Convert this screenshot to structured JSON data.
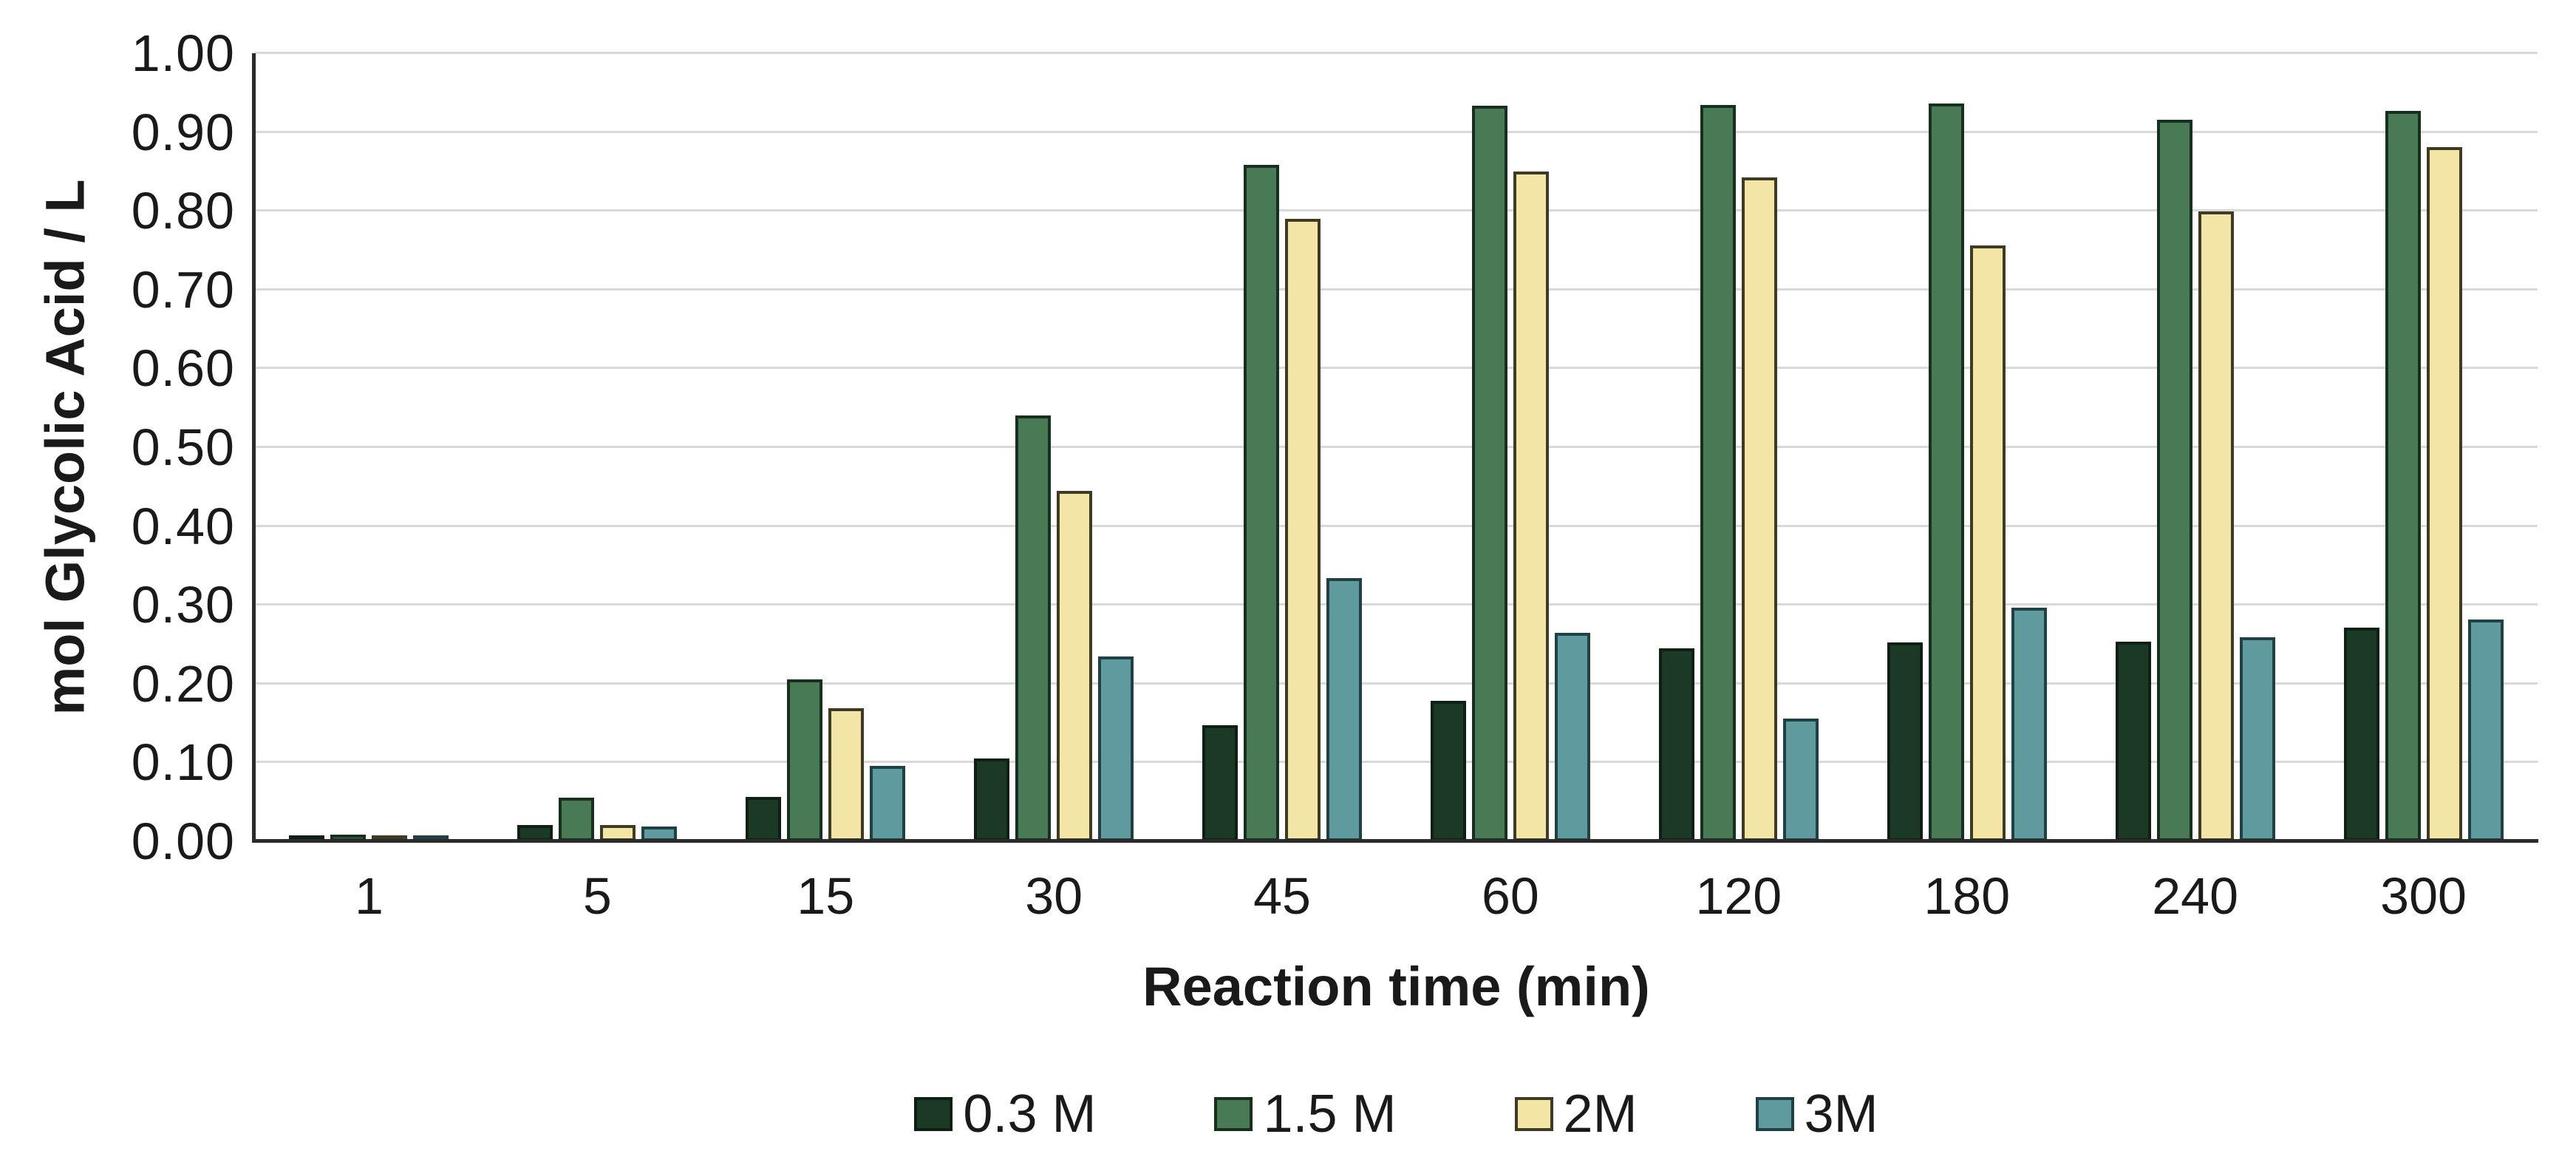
{
  "chart_data": {
    "type": "bar",
    "title": "",
    "xlabel": "Reaction time (min)",
    "ylabel": "mol Glycolic Acid / L",
    "ylim": [
      0,
      1.0
    ],
    "ytick_step": 0.1,
    "ytick_decimals": 2,
    "grid": "horizontal",
    "legend_position": "bottom-center",
    "categories": [
      "1",
      "5",
      "15",
      "30",
      "45",
      "60",
      "120",
      "180",
      "240",
      "300"
    ],
    "series": [
      {
        "name": "0.3 M",
        "color": "#1a3a26",
        "border": "#101f14",
        "values": [
          0.005,
          0.021,
          0.056,
          0.105,
          0.147,
          0.178,
          0.245,
          0.252,
          0.253,
          0.271
        ]
      },
      {
        "name": "1.5 M",
        "color": "#477a55",
        "border": "#16301d",
        "values": [
          0.008,
          0.055,
          0.205,
          0.54,
          0.858,
          0.933,
          0.934,
          0.936,
          0.916,
          0.927
        ]
      },
      {
        "name": "2M",
        "color": "#f2e5a5",
        "border": "#3e3a24",
        "values": [
          0.003,
          0.021,
          0.169,
          0.445,
          0.79,
          0.85,
          0.842,
          0.756,
          0.799,
          0.881
        ]
      },
      {
        "name": "3M",
        "color": "#5f9a9e",
        "border": "#1f4044",
        "values": [
          0.002,
          0.019,
          0.096,
          0.235,
          0.334,
          0.265,
          0.156,
          0.296,
          0.259,
          0.281
        ]
      }
    ],
    "colors": {
      "background": "#ffffff",
      "gridline": "#d9d9d9",
      "axis_line": "#2b2b2b",
      "text": "#1a1a1a"
    }
  }
}
